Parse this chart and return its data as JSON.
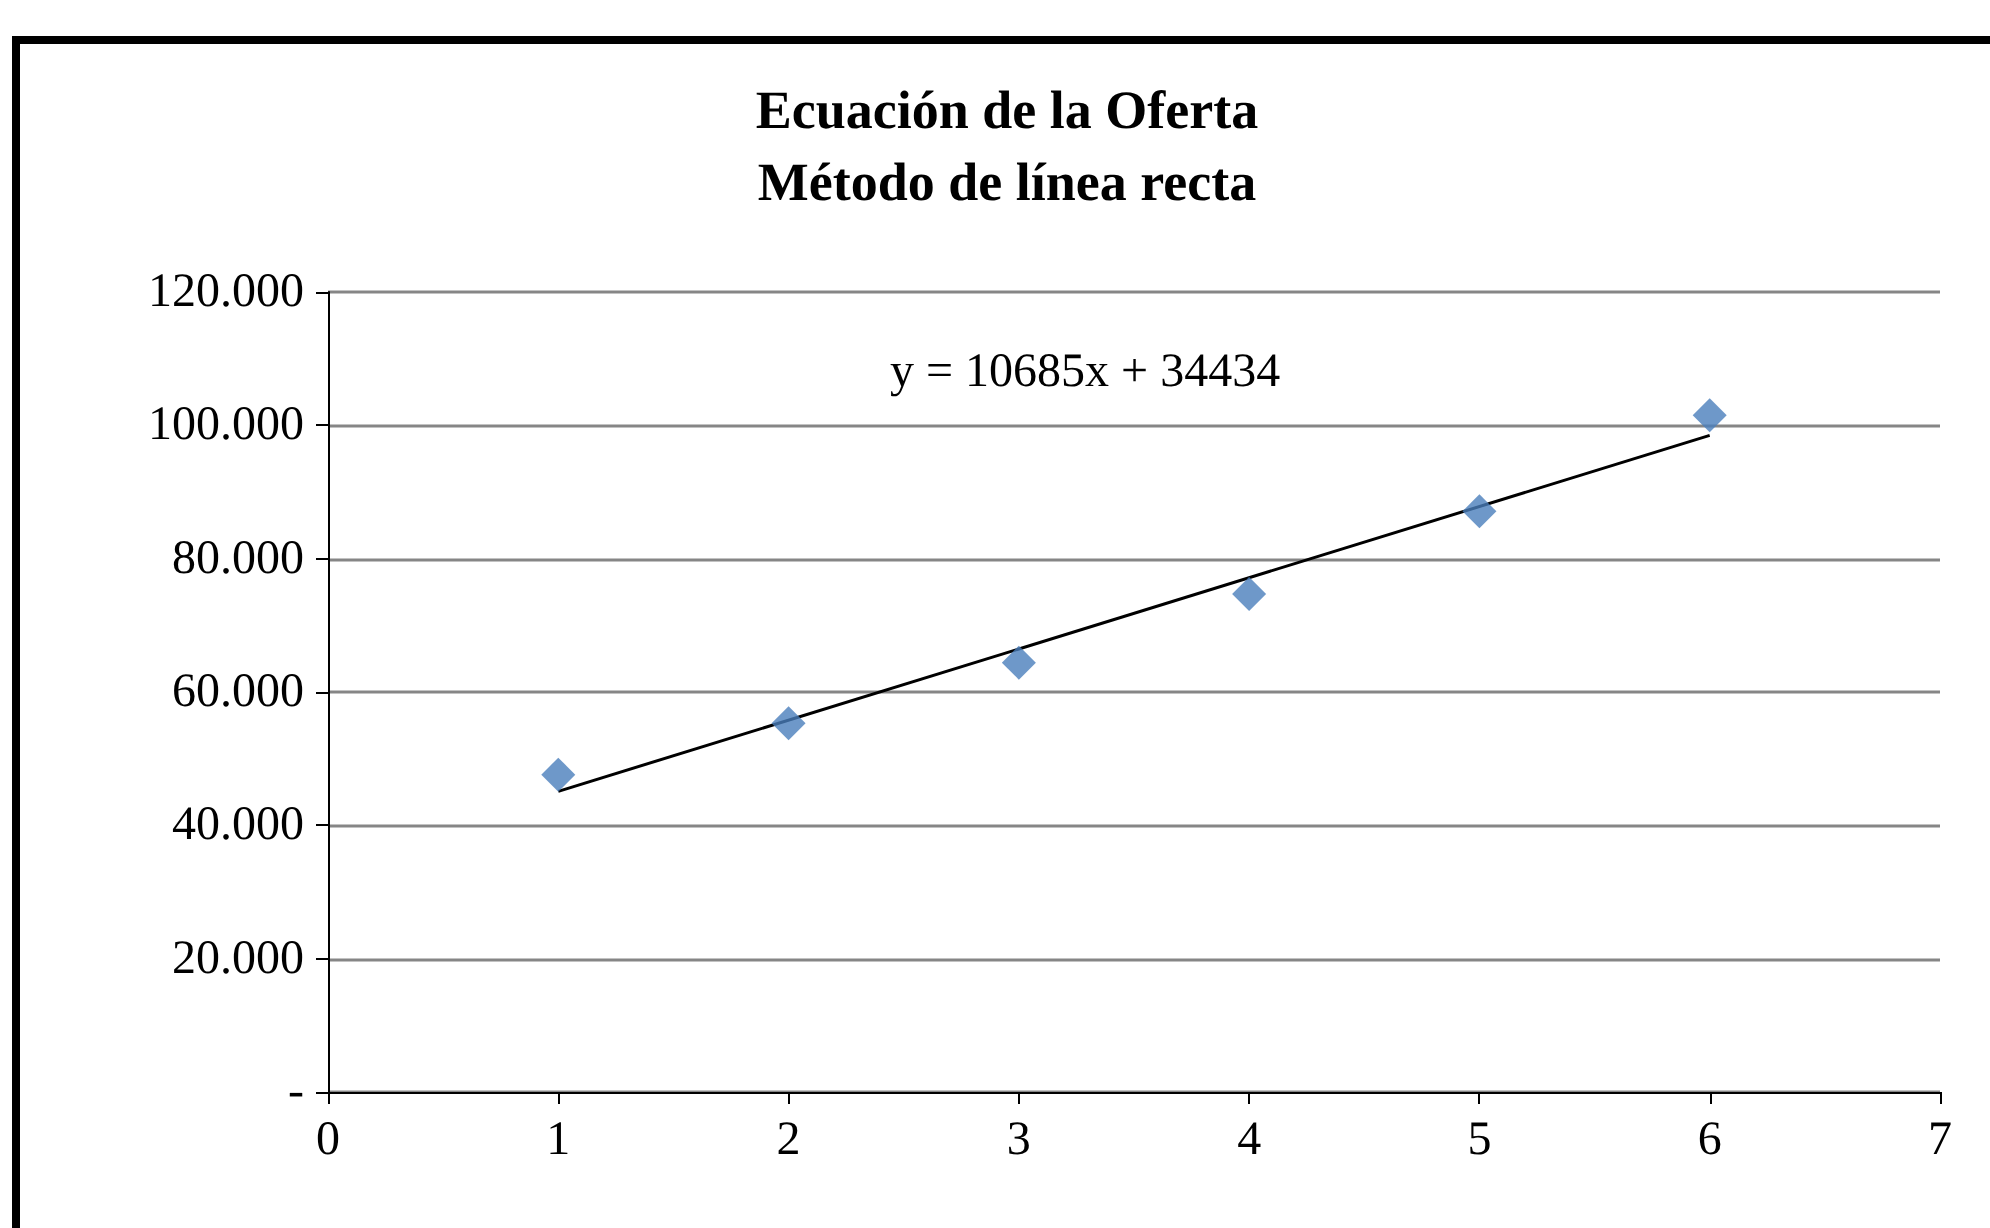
{
  "chart_data": {
    "type": "scatter",
    "title": "Ecuación de la Oferta\nMétodo de línea recta",
    "x": [
      1,
      2,
      3,
      4,
      5,
      6
    ],
    "series": [
      {
        "color": "#4a7ebb",
        "marker": "diamond",
        "values": [
          47600,
          55300,
          64400,
          74700,
          87100,
          101500
        ]
      },
      {
        "type": "line",
        "color": "#000000",
        "marker": "none",
        "x": [
          1,
          6
        ],
        "values": [
          45100,
          98500
        ]
      }
    ],
    "xlim": [
      0,
      7
    ],
    "xticks": [
      0,
      1,
      2,
      3,
      4,
      5,
      6,
      7
    ],
    "ylim": [
      0,
      120000
    ],
    "yticks": [
      {
        "value": 0,
        "label": "-"
      },
      {
        "value": 20000,
        "label": "20.000"
      },
      {
        "value": 40000,
        "label": "40.000"
      },
      {
        "value": 60000,
        "label": "60.000"
      },
      {
        "value": 80000,
        "label": "80.000"
      },
      {
        "value": 100000,
        "label": "100.000"
      },
      {
        "value": 120000,
        "label": "120.000"
      }
    ],
    "grid": "y",
    "line_style": "solid",
    "annotations": [
      "y = 10685x + 34434"
    ]
  }
}
